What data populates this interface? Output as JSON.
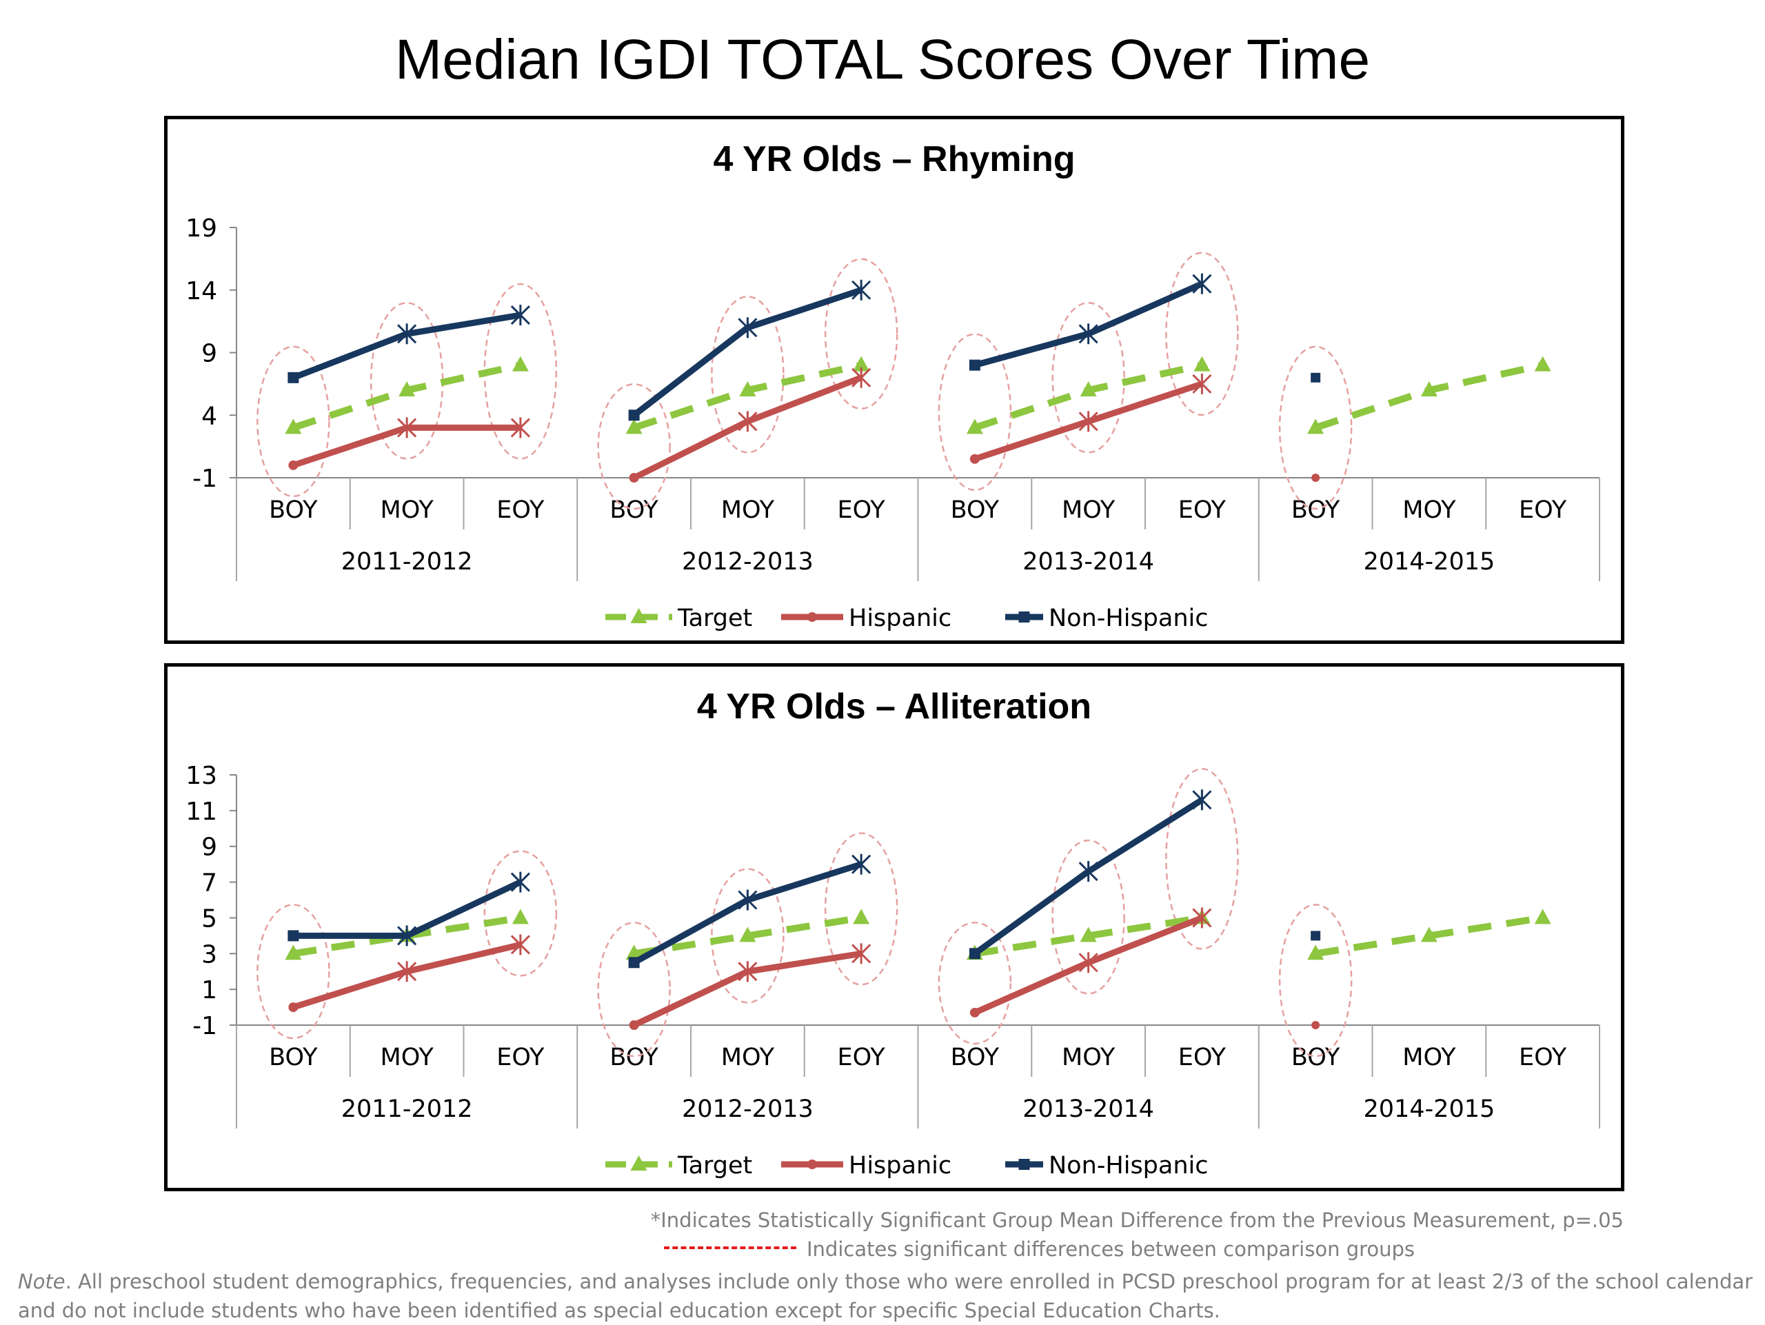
{
  "title": "Median IGDI TOTAL Scores Over Time",
  "chart_data": [
    {
      "type": "line",
      "title": "4 YR Olds – Rhyming",
      "ylim": [
        -1,
        19
      ],
      "y_ticks": [
        -1,
        4,
        9,
        14,
        19
      ],
      "categories": [
        "BOY",
        "MOY",
        "EOY",
        "BOY",
        "MOY",
        "EOY",
        "BOY",
        "MOY",
        "EOY",
        "BOY",
        "MOY",
        "EOY"
      ],
      "groups": [
        "2011-2012",
        "2012-2013",
        "2013-2014",
        "2014-2015"
      ],
      "legend": "bottom",
      "series": [
        {
          "name": "Target",
          "color": "#8dc63f",
          "style": "dashed",
          "marker": "triangle",
          "values": [
            3,
            6,
            8,
            3,
            6,
            8,
            3,
            6,
            8,
            3,
            6,
            8
          ]
        },
        {
          "name": "Hispanic",
          "color": "#c0504d",
          "style": "solid",
          "marker": "x",
          "values": [
            0,
            3,
            3,
            -1,
            3.5,
            7,
            0.5,
            3.5,
            6.5,
            -1,
            null,
            null
          ]
        },
        {
          "name": "Non-Hispanic",
          "color": "#17375e",
          "style": "solid",
          "marker": "x",
          "values": [
            7,
            10.5,
            12,
            4,
            11,
            14,
            8,
            10.5,
            14.5,
            7,
            null,
            null
          ]
        }
      ],
      "significance_ellipses": [
        0,
        1,
        2,
        3,
        4,
        5,
        6,
        7,
        8,
        9
      ]
    },
    {
      "type": "line",
      "title": "4 YR Olds – Alliteration",
      "ylim": [
        -1,
        13
      ],
      "y_ticks": [
        -1,
        1,
        3,
        5,
        7,
        9,
        11,
        13
      ],
      "categories": [
        "BOY",
        "MOY",
        "EOY",
        "BOY",
        "MOY",
        "EOY",
        "BOY",
        "MOY",
        "EOY",
        "BOY",
        "MOY",
        "EOY"
      ],
      "groups": [
        "2011-2012",
        "2012-2013",
        "2013-2014",
        "2014-2015"
      ],
      "legend": "bottom",
      "series": [
        {
          "name": "Target",
          "color": "#8dc63f",
          "style": "dashed",
          "marker": "triangle",
          "values": [
            3,
            4,
            5,
            3,
            4,
            5,
            3,
            4,
            5,
            3,
            4,
            5
          ]
        },
        {
          "name": "Hispanic",
          "color": "#c0504d",
          "style": "solid",
          "marker": "x",
          "values": [
            0,
            2,
            3.5,
            -1,
            2,
            3,
            -0.3,
            2.5,
            5,
            -1,
            null,
            null
          ]
        },
        {
          "name": "Non-Hispanic",
          "color": "#17375e",
          "style": "solid",
          "marker": "x",
          "values": [
            4,
            4,
            7,
            2.5,
            6,
            8,
            3,
            7.6,
            11.6,
            4,
            null,
            null
          ]
        }
      ],
      "significance_ellipses": [
        0,
        2,
        3,
        4,
        5,
        6,
        7,
        8,
        9
      ]
    }
  ],
  "footnotes": {
    "stat_sig": "*Indicates Statistically Significant Group Mean Difference from the Previous Measurement, p=.05",
    "dash_legend": "Indicates significant differences between comparison groups",
    "note_label": "Note",
    "note_text": ". All preschool student demographics, frequencies, and analyses include only those who were enrolled in PCSD preschool program for at least 2/3 of the school calendar and do not include students who have been identified as special education except for specific Special Education Charts."
  }
}
